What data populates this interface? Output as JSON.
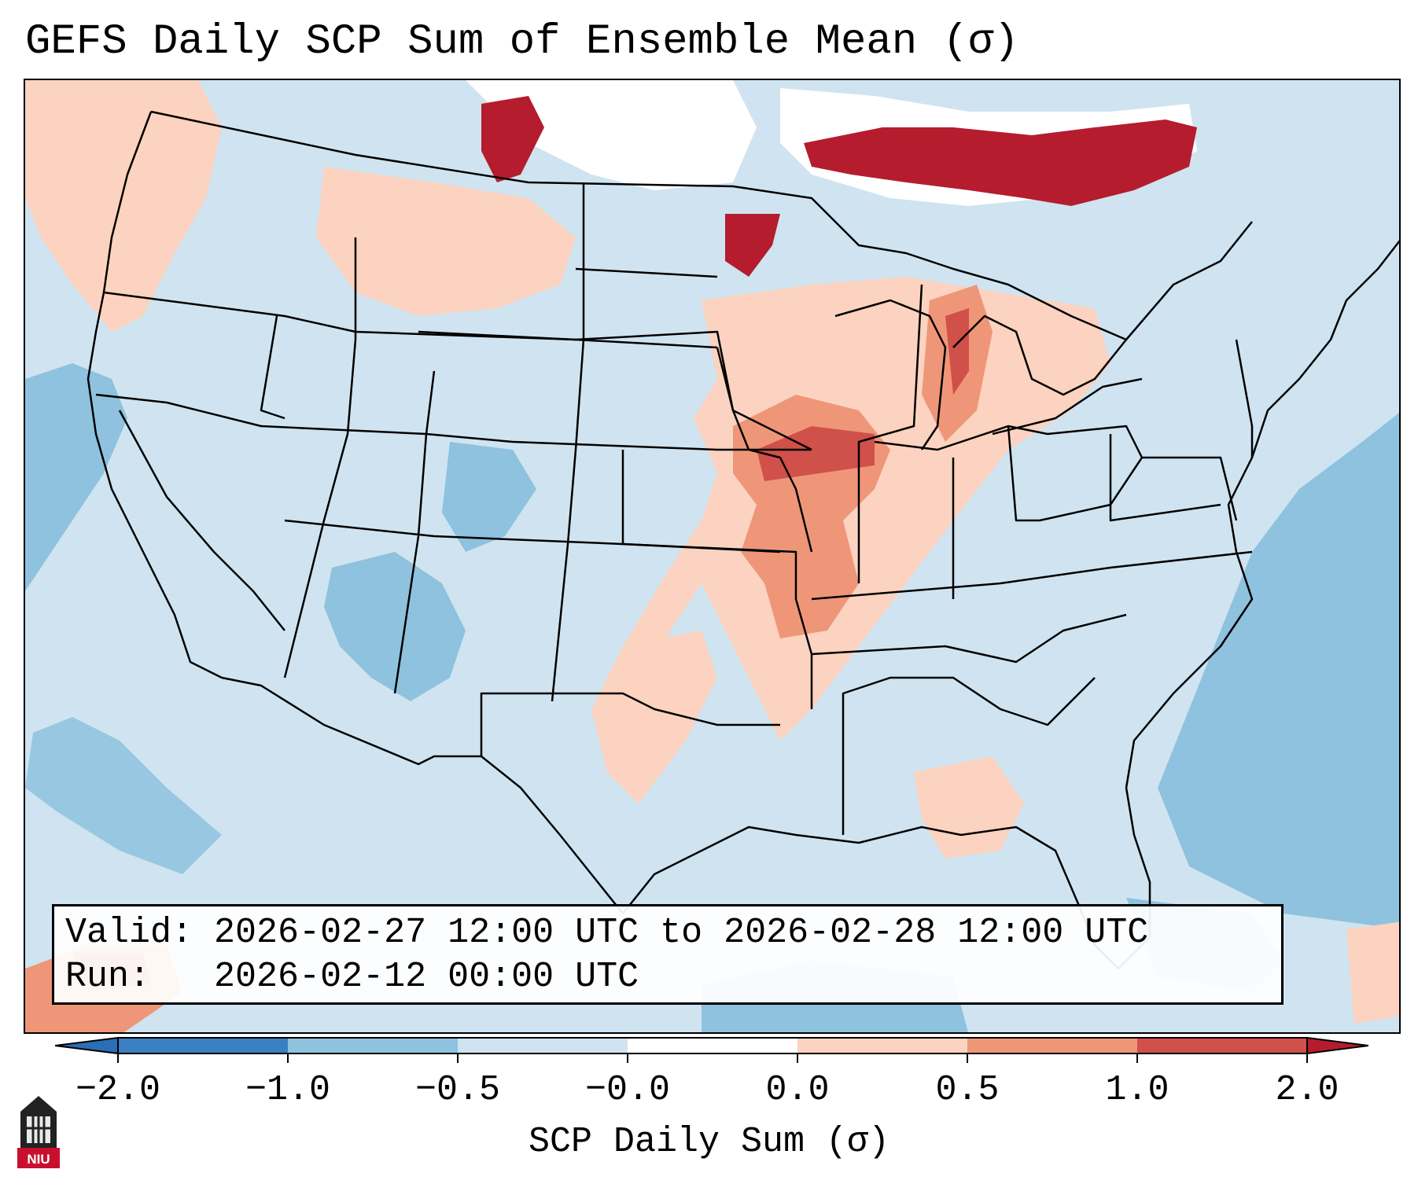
{
  "title": "GEFS Daily SCP Sum of Ensemble Mean (σ)",
  "valid_box": {
    "valid_label": "Valid:",
    "valid_text": "2026-02-27 12:00 UTC to 2026-02-28 12:00 UTC",
    "run_label": "Run:",
    "run_text": "2026-02-12 00:00 UTC"
  },
  "colorbar": {
    "label": "SCP Daily Sum (σ)",
    "ticks": [
      "−2.0",
      "−1.0",
      "−0.5",
      "−0.0",
      "0.0",
      "0.5",
      "1.0",
      "2.0"
    ],
    "colors": [
      "#3a7fc1",
      "#8ec2de",
      "#cfe4f0",
      "#ffffff",
      "#fbd3c0",
      "#ef9679",
      "#d0504a",
      "#b51c2e"
    ]
  },
  "logo": {
    "text": "NIU",
    "color": "#c8102e"
  },
  "map_colors": {
    "background": "#cfe4f0",
    "neg_strong": "#8ec2de",
    "pos_light": "#fbd3c0",
    "pos_mid": "#ef9679",
    "pos_strong": "#d0504a",
    "pos_max": "#b51c2e",
    "neutral": "#ffffff"
  }
}
